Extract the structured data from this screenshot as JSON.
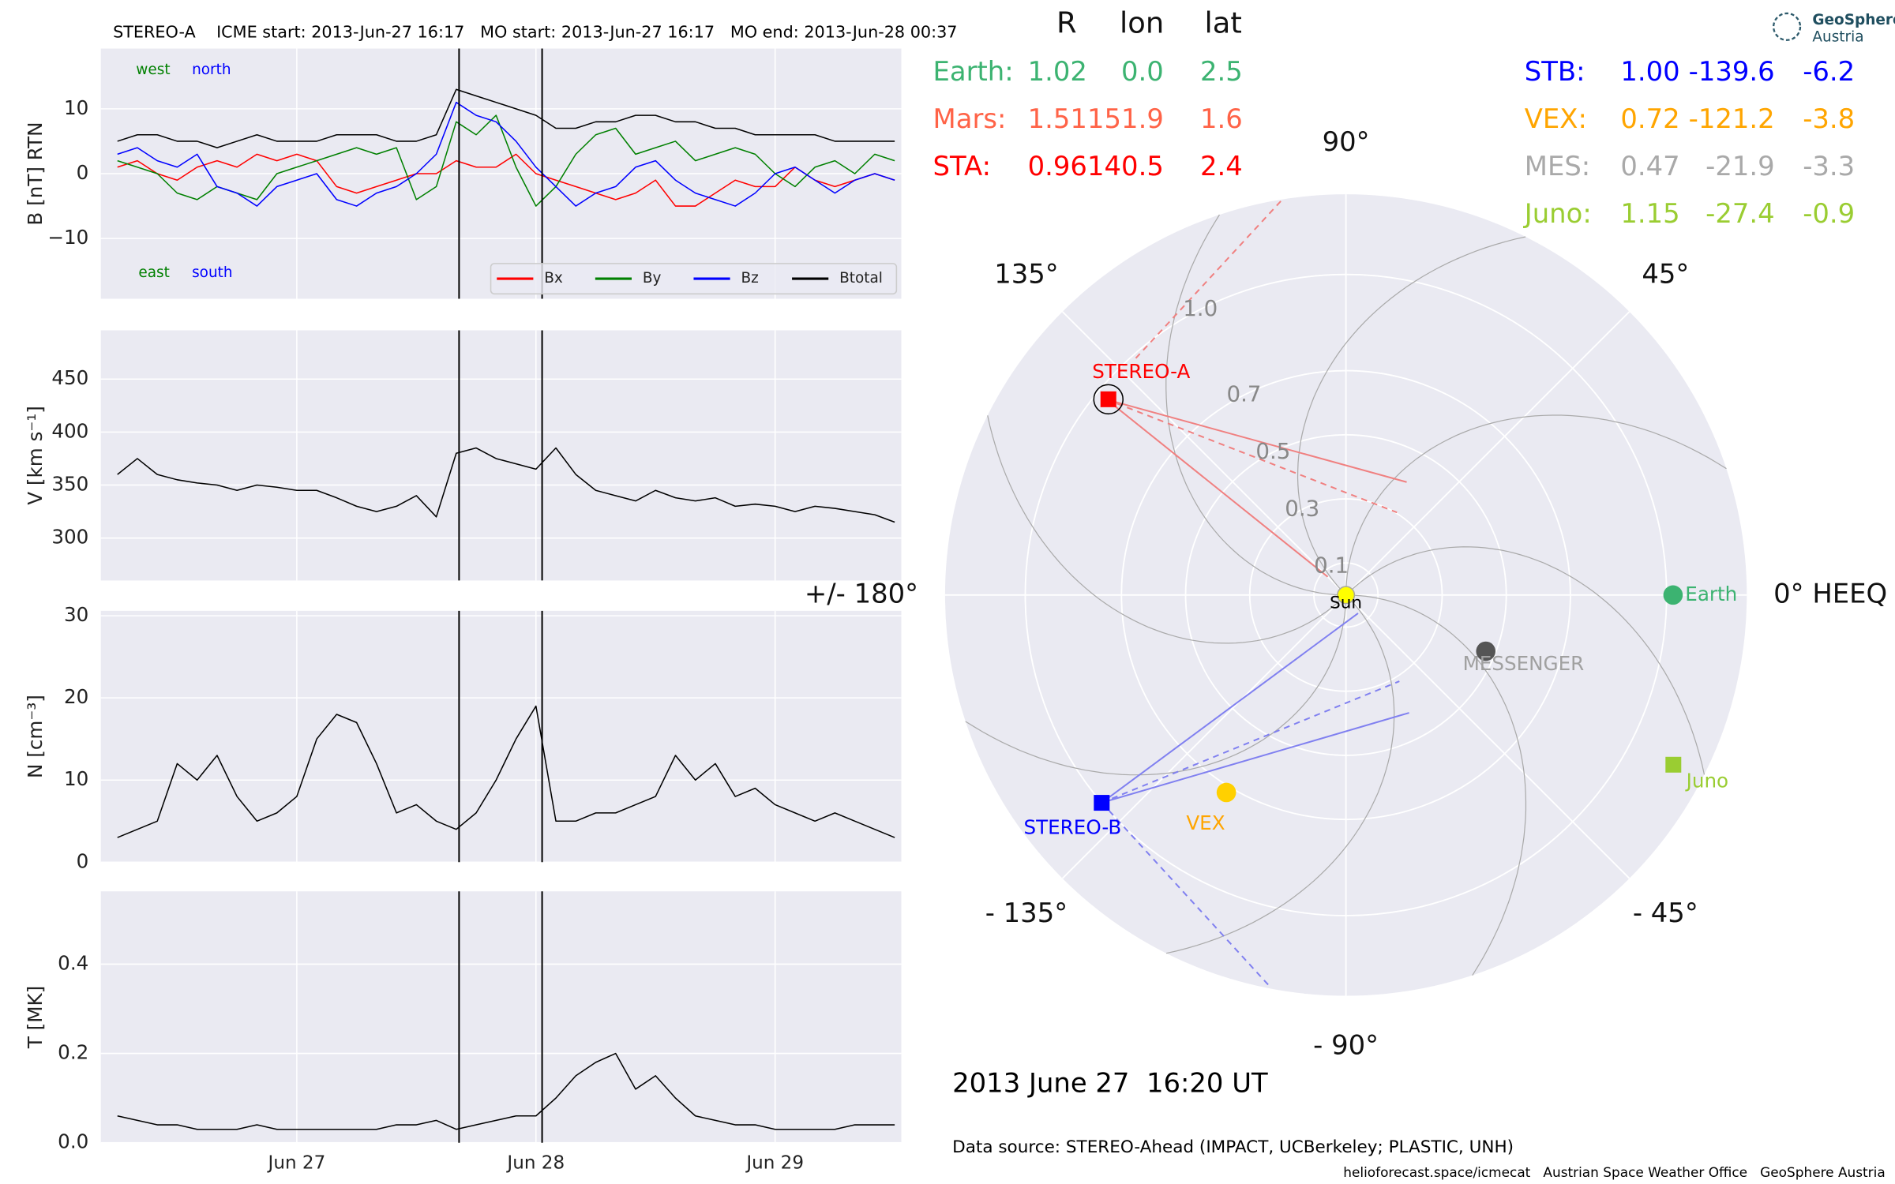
{
  "title": "STEREO-A    ICME start: 2013-Jun-27 16:17   MO start: 2013-Jun-27 16:17   MO end: 2013-Jun-28 00:37",
  "chart_data": [
    {
      "type": "line",
      "x": [
        "2013-06-26T06:00",
        "2013-06-26T08:00",
        "2013-06-26T10:00",
        "2013-06-26T12:00",
        "2013-06-26T14:00",
        "2013-06-26T16:00",
        "2013-06-26T18:00",
        "2013-06-26T20:00",
        "2013-06-26T22:00",
        "2013-06-27T00:00",
        "2013-06-27T02:00",
        "2013-06-27T04:00",
        "2013-06-27T06:00",
        "2013-06-27T08:00",
        "2013-06-27T10:00",
        "2013-06-27T12:00",
        "2013-06-27T14:00",
        "2013-06-27T16:00",
        "2013-06-27T18:00",
        "2013-06-27T20:00",
        "2013-06-27T22:00",
        "2013-06-28T00:00",
        "2013-06-28T02:00",
        "2013-06-28T04:00",
        "2013-06-28T06:00",
        "2013-06-28T08:00",
        "2013-06-28T10:00",
        "2013-06-28T12:00",
        "2013-06-28T14:00",
        "2013-06-28T16:00",
        "2013-06-28T18:00",
        "2013-06-28T20:00",
        "2013-06-28T22:00",
        "2013-06-29T00:00",
        "2013-06-29T02:00",
        "2013-06-29T04:00",
        "2013-06-29T06:00",
        "2013-06-29T08:00",
        "2013-06-29T10:00",
        "2013-06-29T12:00"
      ],
      "xlim": [
        "2013-06-26T04:20",
        "2013-06-29T12:40"
      ],
      "xticks": [
        {
          "value": "2013-06-27T00:00",
          "label": "Jun 27"
        },
        {
          "value": "2013-06-28T00:00",
          "label": "Jun 28"
        },
        {
          "value": "2013-06-29T00:00",
          "label": "Jun 29"
        }
      ],
      "vlines": [
        "2013-06-27T16:17",
        "2013-06-28T00:37"
      ],
      "grid": true,
      "panels": [
        {
          "ylabel": "B [nT] RTN",
          "ylim": [
            -19.3,
            19.3
          ],
          "yticks": [
            {
              "value": -10,
              "label": "−10"
            },
            0,
            10
          ],
          "legend": "lower right",
          "annotations": [
            {
              "text": "west",
              "color": "#008000"
            },
            {
              "text": "north",
              "color": "#0000ff"
            },
            {
              "text": "east",
              "color": "#008000"
            },
            {
              "text": "south",
              "color": "#0000ff"
            }
          ],
          "series": [
            {
              "name": "Bx",
              "color": "#ff0000",
              "values": [
                1,
                2,
                0,
                -1,
                1,
                2,
                1,
                3,
                2,
                3,
                2,
                -2,
                -3,
                -2,
                -1,
                0,
                0,
                2,
                1,
                1,
                3,
                0,
                -1,
                -2,
                -3,
                -4,
                -3,
                -1,
                -5,
                -5,
                -3,
                -1,
                -2,
                -2,
                1,
                -1,
                -2,
                -1,
                0,
                -1
              ]
            },
            {
              "name": "By",
              "color": "#008000",
              "values": [
                2,
                1,
                0,
                -3,
                -4,
                -2,
                -3,
                -4,
                0,
                1,
                2,
                3,
                4,
                3,
                4,
                -4,
                -2,
                8,
                6,
                9,
                1,
                -5,
                -2,
                3,
                6,
                7,
                3,
                4,
                5,
                2,
                3,
                4,
                3,
                0,
                -2,
                1,
                2,
                0,
                3,
                2
              ]
            },
            {
              "name": "Bz",
              "color": "#0000ff",
              "values": [
                3,
                4,
                2,
                1,
                3,
                -2,
                -3,
                -5,
                -2,
                -1,
                0,
                -4,
                -5,
                -3,
                -2,
                0,
                3,
                11,
                9,
                8,
                5,
                1,
                -2,
                -5,
                -3,
                -2,
                1,
                2,
                -1,
                -3,
                -4,
                -5,
                -3,
                0,
                1,
                -1,
                -3,
                -1,
                0,
                -1
              ]
            },
            {
              "name": "Btotal",
              "color": "#000000",
              "values": [
                5,
                6,
                6,
                5,
                5,
                4,
                5,
                6,
                5,
                5,
                5,
                6,
                6,
                6,
                5,
                5,
                6,
                13,
                12,
                11,
                10,
                9,
                7,
                7,
                8,
                8,
                9,
                9,
                8,
                8,
                7,
                7,
                6,
                6,
                6,
                6,
                5,
                5,
                5,
                5
              ]
            }
          ]
        },
        {
          "ylabel": "V [km s⁻¹]",
          "ylim": [
            260,
            496
          ],
          "yticks": [
            300,
            350,
            400,
            450
          ],
          "series": [
            {
              "color": "#000000",
              "values": [
                360,
                375,
                360,
                355,
                352,
                350,
                345,
                350,
                348,
                345,
                345,
                338,
                330,
                325,
                330,
                340,
                320,
                380,
                385,
                375,
                370,
                365,
                385,
                360,
                345,
                340,
                335,
                345,
                338,
                335,
                338,
                330,
                332,
                330,
                325,
                330,
                328,
                325,
                322,
                315
              ]
            }
          ]
        },
        {
          "ylabel": "N [cm⁻³]",
          "ylim": [
            0,
            30.6
          ],
          "yticks": [
            0,
            10,
            20,
            30
          ],
          "series": [
            {
              "color": "#000000",
              "values": [
                3,
                4,
                5,
                12,
                10,
                13,
                8,
                5,
                6,
                8,
                15,
                18,
                17,
                12,
                6,
                7,
                5,
                4,
                6,
                10,
                15,
                19,
                5,
                5,
                6,
                6,
                7,
                8,
                13,
                10,
                12,
                8,
                9,
                7,
                6,
                5,
                6,
                5,
                4,
                3
              ]
            }
          ]
        },
        {
          "ylabel": "T [MK]",
          "ylim": [
            0,
            0.563
          ],
          "yticks": [
            {
              "value": 0,
              "label": "0.0"
            },
            0.2,
            0.4
          ],
          "series": [
            {
              "color": "#000000",
              "values": [
                0.06,
                0.05,
                0.04,
                0.04,
                0.03,
                0.03,
                0.03,
                0.04,
                0.03,
                0.03,
                0.03,
                0.03,
                0.03,
                0.03,
                0.04,
                0.04,
                0.05,
                0.03,
                0.04,
                0.05,
                0.06,
                0.06,
                0.1,
                0.15,
                0.18,
                0.2,
                0.12,
                0.15,
                0.1,
                0.06,
                0.05,
                0.04,
                0.04,
                0.03,
                0.03,
                0.03,
                0.03,
                0.04,
                0.04,
                0.04
              ]
            }
          ]
        }
      ]
    },
    {
      "type": "polar",
      "rlim": [
        0,
        1.25
      ],
      "rticks": [
        0.1,
        0.3,
        0.5,
        0.7,
        {
          "value": 1,
          "label": "1.0"
        }
      ],
      "thetaticks": [
        {
          "value": 0,
          "label": "0° HEEQ"
        },
        {
          "value": 45,
          "label": "45°"
        },
        {
          "value": 90,
          "label": "90°"
        },
        {
          "value": 135,
          "label": "135°"
        },
        {
          "value": 180,
          "label": "+/- 180°"
        },
        {
          "value": -135,
          "label": "- 135°"
        },
        {
          "value": -90,
          "label": "- 90°"
        },
        {
          "value": -45,
          "label": "- 45°"
        }
      ],
      "objects": [
        {
          "name": "Earth",
          "color": "#3cb371",
          "label_color": "#3cb371",
          "marker": "circle",
          "r": 1.02,
          "lon": 0.0
        },
        {
          "name": "STEREO-A",
          "color": "#ff0000",
          "label_color": "#ff0000",
          "marker": "square",
          "r": 0.96,
          "lon": 140.5
        },
        {
          "name": "STEREO-B",
          "color": "#0000ff",
          "label_color": "#0000ff",
          "marker": "square",
          "r": 1.0,
          "lon": -139.6
        },
        {
          "name": "VEX",
          "color": "#ffd000",
          "label_color": "#ffa500",
          "marker": "circle",
          "r": 0.72,
          "lon": -121.2
        },
        {
          "name": "MESSENGER",
          "color": "#555555",
          "label_color": "#a0a0a0",
          "marker": "circle",
          "r": 0.47,
          "lon": -21.9
        },
        {
          "name": "Juno",
          "color": "#9acd32",
          "label_color": "#9acd32",
          "marker": "square",
          "r": 1.15,
          "lon": -27.4
        },
        {
          "name": "Sun",
          "color": "#ffff00",
          "label_color": "#000000",
          "marker": "circle",
          "r": 0,
          "lon": 0
        }
      ]
    }
  ],
  "positions": {
    "columns": [
      "R",
      "lon",
      "lat"
    ],
    "left": [
      {
        "name": "Earth:",
        "color": "#3cb371",
        "values": [
          "1.02",
          "0.0",
          "2.5"
        ]
      },
      {
        "name": "Mars:",
        "color": "#ff6347",
        "values": [
          "1.51",
          "151.9",
          "1.6"
        ]
      },
      {
        "name": "STA:",
        "color": "#ff0000",
        "values": [
          "0.96",
          "140.5",
          "2.4"
        ]
      }
    ],
    "right": [
      {
        "name": "STB:",
        "color": "#0000ff",
        "values": [
          "1.00",
          "-139.6",
          "-6.2"
        ]
      },
      {
        "name": "VEX:",
        "color": "#ffa500",
        "values": [
          "0.72",
          "-121.2",
          "-3.8"
        ]
      },
      {
        "name": "MES:",
        "color": "#a9a9a9",
        "values": [
          "0.47",
          "-21.9",
          "-3.3"
        ]
      },
      {
        "name": "Juno:",
        "color": "#9acd32",
        "values": [
          "1.15",
          "-27.4",
          "-0.9"
        ]
      }
    ]
  },
  "date": "2013 June 27  16:20 UT",
  "source": "Data source: STEREO-Ahead (IMPACT, UCBerkeley; PLASTIC, UNH)",
  "footer": "helioforecast.space/icmecat   Austrian Space Weather Office   GeoSphere Austria",
  "logo": [
    "GeoSphere",
    "Austria"
  ]
}
